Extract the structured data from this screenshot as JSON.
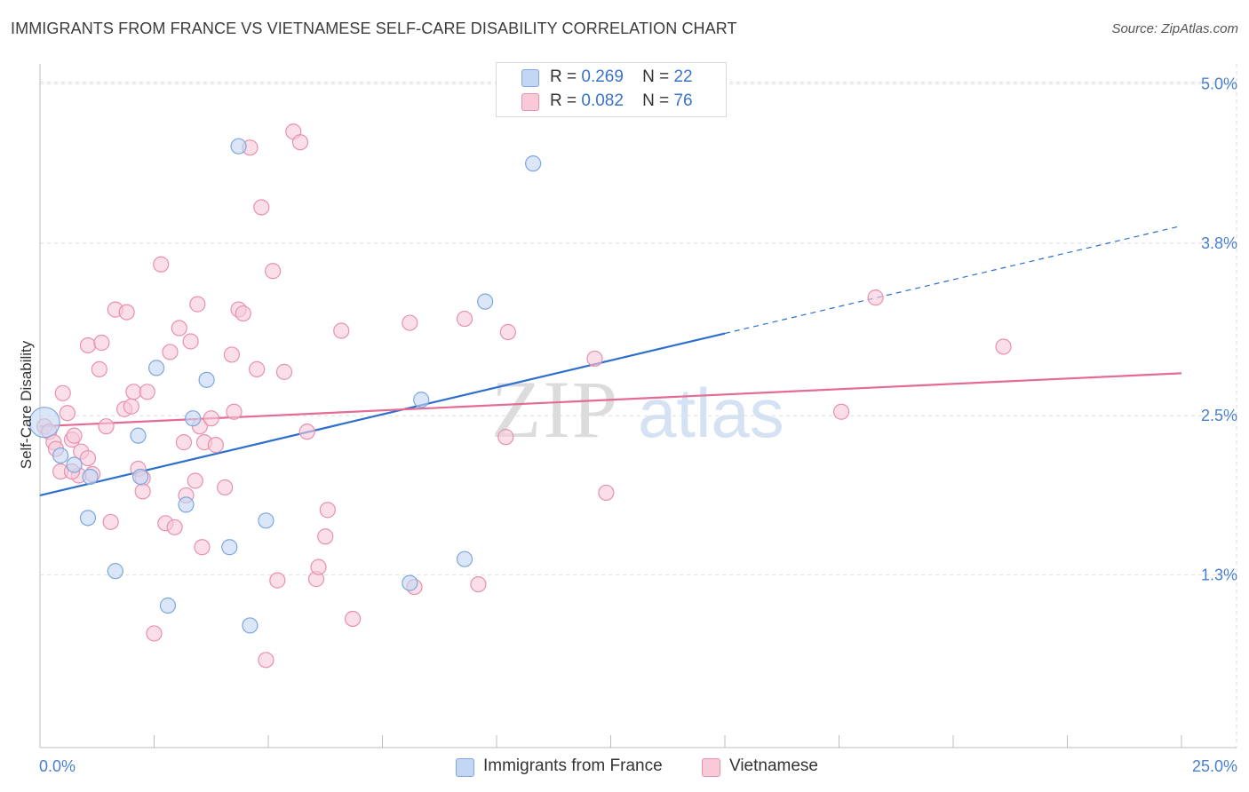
{
  "header": {
    "title": "IMMIGRANTS FROM FRANCE VS VIETNAMESE SELF-CARE DISABILITY CORRELATION CHART",
    "source": "Source: ZipAtlas.com"
  },
  "legend": {
    "series": [
      {
        "r_label": "R =",
        "r_value": "0.269",
        "n_label": "N =",
        "n_value": "22",
        "name": "Immigrants from France"
      },
      {
        "r_label": "R =",
        "r_value": "0.082",
        "n_label": "N =",
        "n_value": "76",
        "name": "Vietnamese"
      }
    ]
  },
  "watermark": {
    "zip": "ZIP",
    "atlas": "atlas"
  },
  "colors": {
    "blue_fill": "#c3d7f4",
    "blue_stroke": "#7ea7dd",
    "blue_line": "#2d6fcf",
    "pink_fill": "#f8cad8",
    "pink_stroke": "#e891ad",
    "pink_line": "#e46b93",
    "grid": "#dedede",
    "tick_text": "#4a7fd0"
  },
  "chart_data": {
    "type": "scatter",
    "title": "IMMIGRANTS FROM FRANCE VS VIETNAMESE SELF-CARE DISABILITY CORRELATION CHART",
    "xlabel": "",
    "ylabel": "Self-Care Disability",
    "xlim": [
      0,
      25
    ],
    "ylim": [
      0,
      5.15
    ],
    "x_tick_labels": [
      "0.0%",
      "25.0%"
    ],
    "y_ticks": [
      1.3,
      2.5,
      3.8,
      5.0
    ],
    "y_tick_labels": [
      "1.3%",
      "2.5%",
      "3.8%",
      "5.0%"
    ],
    "grid": true,
    "legend_position": "top-center",
    "series": [
      {
        "name": "Immigrants from France",
        "color": "blue",
        "r": 0.269,
        "n": 22,
        "trend": {
          "x0": 0,
          "y0": 1.9,
          "x1": 15,
          "y1": 3.12,
          "dashed_to_x": 25,
          "dashed_to_y": 3.93
        },
        "points": [
          [
            0.1,
            2.45,
            "large"
          ],
          [
            0.45,
            2.2
          ],
          [
            0.75,
            2.13
          ],
          [
            1.1,
            2.04
          ],
          [
            1.65,
            1.33
          ],
          [
            2.15,
            2.35
          ],
          [
            2.8,
            1.07
          ],
          [
            2.55,
            2.86
          ],
          [
            3.2,
            1.83
          ],
          [
            3.35,
            2.48
          ],
          [
            3.65,
            2.77
          ],
          [
            4.15,
            1.51
          ],
          [
            4.35,
            4.53
          ],
          [
            4.6,
            0.92
          ],
          [
            4.95,
            1.71
          ],
          [
            8.1,
            1.24
          ],
          [
            8.35,
            2.62
          ],
          [
            9.3,
            1.42
          ],
          [
            9.75,
            3.36
          ],
          [
            10.8,
            4.4
          ],
          [
            1.05,
            1.73
          ],
          [
            2.2,
            2.04
          ]
        ]
      },
      {
        "name": "Vietnamese",
        "color": "pink",
        "r": 0.082,
        "n": 76,
        "trend": {
          "x0": 0,
          "y0": 2.42,
          "x1": 25,
          "y1": 2.82
        },
        "points": [
          [
            0.1,
            2.42
          ],
          [
            0.2,
            2.38
          ],
          [
            0.3,
            2.3
          ],
          [
            0.35,
            2.25
          ],
          [
            0.45,
            2.08
          ],
          [
            0.5,
            2.67
          ],
          [
            0.6,
            2.52
          ],
          [
            0.7,
            2.32
          ],
          [
            0.75,
            2.35
          ],
          [
            0.85,
            2.05
          ],
          [
            0.9,
            2.23
          ],
          [
            1.05,
            2.18
          ],
          [
            1.05,
            3.03
          ],
          [
            1.15,
            2.06
          ],
          [
            1.3,
            2.85
          ],
          [
            1.35,
            3.05
          ],
          [
            1.45,
            2.42
          ],
          [
            1.55,
            1.7
          ],
          [
            1.65,
            3.3
          ],
          [
            1.85,
            2.55
          ],
          [
            1.9,
            3.28
          ],
          [
            2.0,
            2.57
          ],
          [
            2.05,
            2.68
          ],
          [
            2.15,
            2.1
          ],
          [
            2.25,
            2.03
          ],
          [
            2.25,
            1.93
          ],
          [
            2.35,
            2.68
          ],
          [
            2.5,
            0.86
          ],
          [
            2.65,
            3.64
          ],
          [
            2.75,
            1.69
          ],
          [
            2.85,
            2.98
          ],
          [
            2.95,
            1.66
          ],
          [
            3.05,
            3.16
          ],
          [
            3.15,
            2.3
          ],
          [
            3.2,
            1.9
          ],
          [
            3.3,
            3.06
          ],
          [
            3.4,
            2.01
          ],
          [
            3.45,
            3.34
          ],
          [
            3.5,
            2.42
          ],
          [
            3.55,
            1.51
          ],
          [
            3.6,
            2.3
          ],
          [
            3.75,
            2.48
          ],
          [
            3.85,
            2.28
          ],
          [
            4.05,
            1.96
          ],
          [
            4.2,
            2.96
          ],
          [
            4.25,
            2.53
          ],
          [
            4.35,
            3.3
          ],
          [
            4.45,
            3.27
          ],
          [
            4.6,
            4.52
          ],
          [
            4.75,
            2.85
          ],
          [
            4.85,
            4.07
          ],
          [
            4.95,
            0.66
          ],
          [
            5.1,
            3.59
          ],
          [
            5.2,
            1.26
          ],
          [
            5.35,
            2.83
          ],
          [
            5.55,
            4.64
          ],
          [
            5.7,
            4.56
          ],
          [
            5.85,
            2.38
          ],
          [
            6.05,
            1.27
          ],
          [
            6.1,
            1.36
          ],
          [
            6.25,
            1.59
          ],
          [
            6.3,
            1.79
          ],
          [
            6.6,
            3.14
          ],
          [
            6.85,
            0.97
          ],
          [
            8.1,
            3.2
          ],
          [
            8.2,
            1.21
          ],
          [
            9.3,
            3.23
          ],
          [
            9.6,
            1.23
          ],
          [
            10.2,
            2.34
          ],
          [
            10.25,
            3.13
          ],
          [
            12.15,
            2.93
          ],
          [
            12.4,
            1.92
          ],
          [
            17.55,
            2.53
          ],
          [
            18.3,
            3.39
          ],
          [
            21.1,
            3.02
          ],
          [
            0.7,
            2.08
          ]
        ]
      }
    ]
  }
}
